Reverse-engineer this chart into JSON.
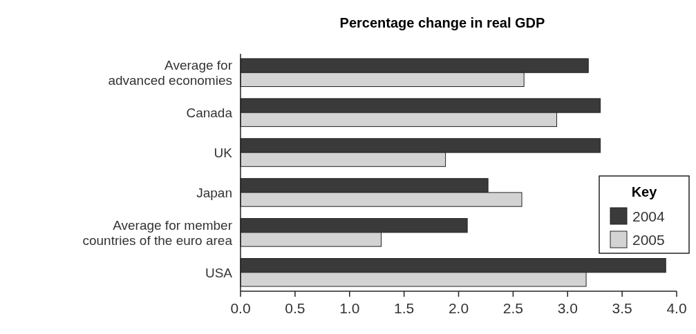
{
  "chart_data": {
    "type": "bar",
    "orientation": "horizontal",
    "title": "Percentage change in real GDP",
    "legend_title": "Key",
    "categories": [
      "Average for\nadvanced economies",
      "Canada",
      "UK",
      "Japan",
      "Average for member\ncountries of the euro area",
      "USA"
    ],
    "series": [
      {
        "name": "2004",
        "color": "#3a3a3a",
        "values": [
          3.19,
          3.3,
          3.3,
          2.27,
          2.08,
          3.9
        ]
      },
      {
        "name": "2005",
        "color": "#d3d3d3",
        "values": [
          2.6,
          2.9,
          1.88,
          2.58,
          1.29,
          3.17
        ]
      }
    ],
    "xlim": [
      0,
      4
    ],
    "xticks": [
      {
        "value": 0,
        "label": "0.0"
      },
      0.5,
      {
        "value": 1,
        "label": "1.0"
      },
      1.5,
      {
        "value": 2,
        "label": "2.0"
      },
      2.5,
      {
        "value": 3,
        "label": "3.0"
      },
      3.5,
      {
        "value": 4,
        "label": "4.0"
      }
    ],
    "legend": "right",
    "grid": false
  }
}
